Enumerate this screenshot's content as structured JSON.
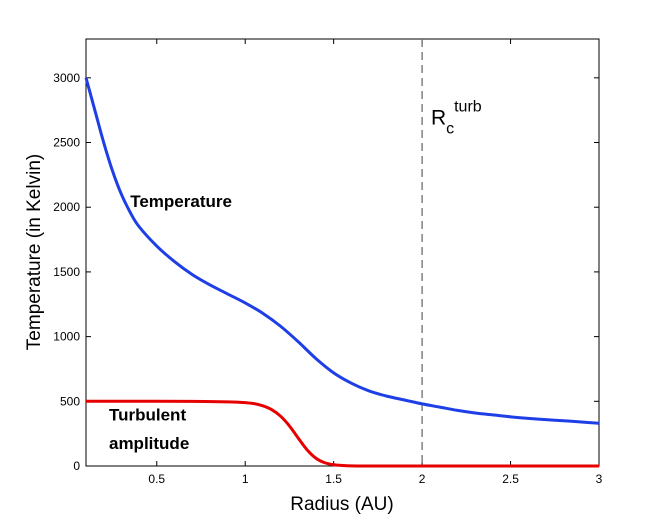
{
  "chart_data": {
    "type": "line",
    "xlabel": "Radius (AU)",
    "ylabel": "Temperature (in Kelvin)",
    "xlim": [
      0.1,
      3.0
    ],
    "ylim": [
      0,
      3300
    ],
    "x_ticks": [
      0.5,
      1,
      1.5,
      2,
      2.5,
      3
    ],
    "x_tick_labels": [
      "0.5",
      "1",
      "1.5",
      "2",
      "2.5",
      "3"
    ],
    "y_ticks": [
      0,
      500,
      1000,
      1500,
      2000,
      2500,
      3000
    ],
    "y_tick_labels": [
      "0",
      "500",
      "1000",
      "1500",
      "2000",
      "2500",
      "3000"
    ],
    "grid": false,
    "series": [
      {
        "name": "Temperature",
        "color": "#1f3fe6",
        "x": [
          0.1,
          0.15,
          0.2,
          0.25,
          0.3,
          0.35,
          0.4,
          0.5,
          0.6,
          0.7,
          0.8,
          0.9,
          1.0,
          1.1,
          1.2,
          1.3,
          1.4,
          1.5,
          1.6,
          1.7,
          1.8,
          1.9,
          2.0,
          2.1,
          2.2,
          2.3,
          2.4,
          2.5,
          2.6,
          2.7,
          2.8,
          2.9,
          3.0
        ],
        "y": [
          3000,
          2750,
          2500,
          2280,
          2100,
          1960,
          1850,
          1700,
          1580,
          1480,
          1400,
          1330,
          1260,
          1180,
          1080,
          960,
          830,
          720,
          640,
          580,
          540,
          510,
          480,
          455,
          430,
          410,
          395,
          380,
          368,
          358,
          350,
          340,
          330
        ]
      },
      {
        "name": "Turbulent amplitude",
        "color": "#e60000",
        "x": [
          0.1,
          0.3,
          0.5,
          0.7,
          0.9,
          1.0,
          1.05,
          1.1,
          1.15,
          1.2,
          1.25,
          1.3,
          1.35,
          1.4,
          1.45,
          1.5,
          1.55,
          1.6,
          1.7,
          1.8,
          2.0,
          2.5,
          3.0
        ],
        "y": [
          500,
          500,
          500,
          499,
          496,
          490,
          482,
          465,
          435,
          385,
          310,
          215,
          125,
          60,
          25,
          10,
          4,
          1,
          0,
          0,
          0,
          0,
          0
        ]
      }
    ],
    "vline": {
      "x": 2.0,
      "style": "dashed",
      "color": "#777777"
    },
    "annotations": {
      "temperature": {
        "text": "Temperature",
        "x": 0.35,
        "y": 2000
      },
      "turbulent_line1": {
        "text": "Turbulent",
        "x": 0.23,
        "y": 350
      },
      "turbulent_line2": {
        "text": "amplitude",
        "x": 0.23,
        "y": 130
      },
      "rc": {
        "main": "R",
        "sub": "c",
        "sup": "turb",
        "x": 2.05,
        "y": 2640
      }
    }
  }
}
